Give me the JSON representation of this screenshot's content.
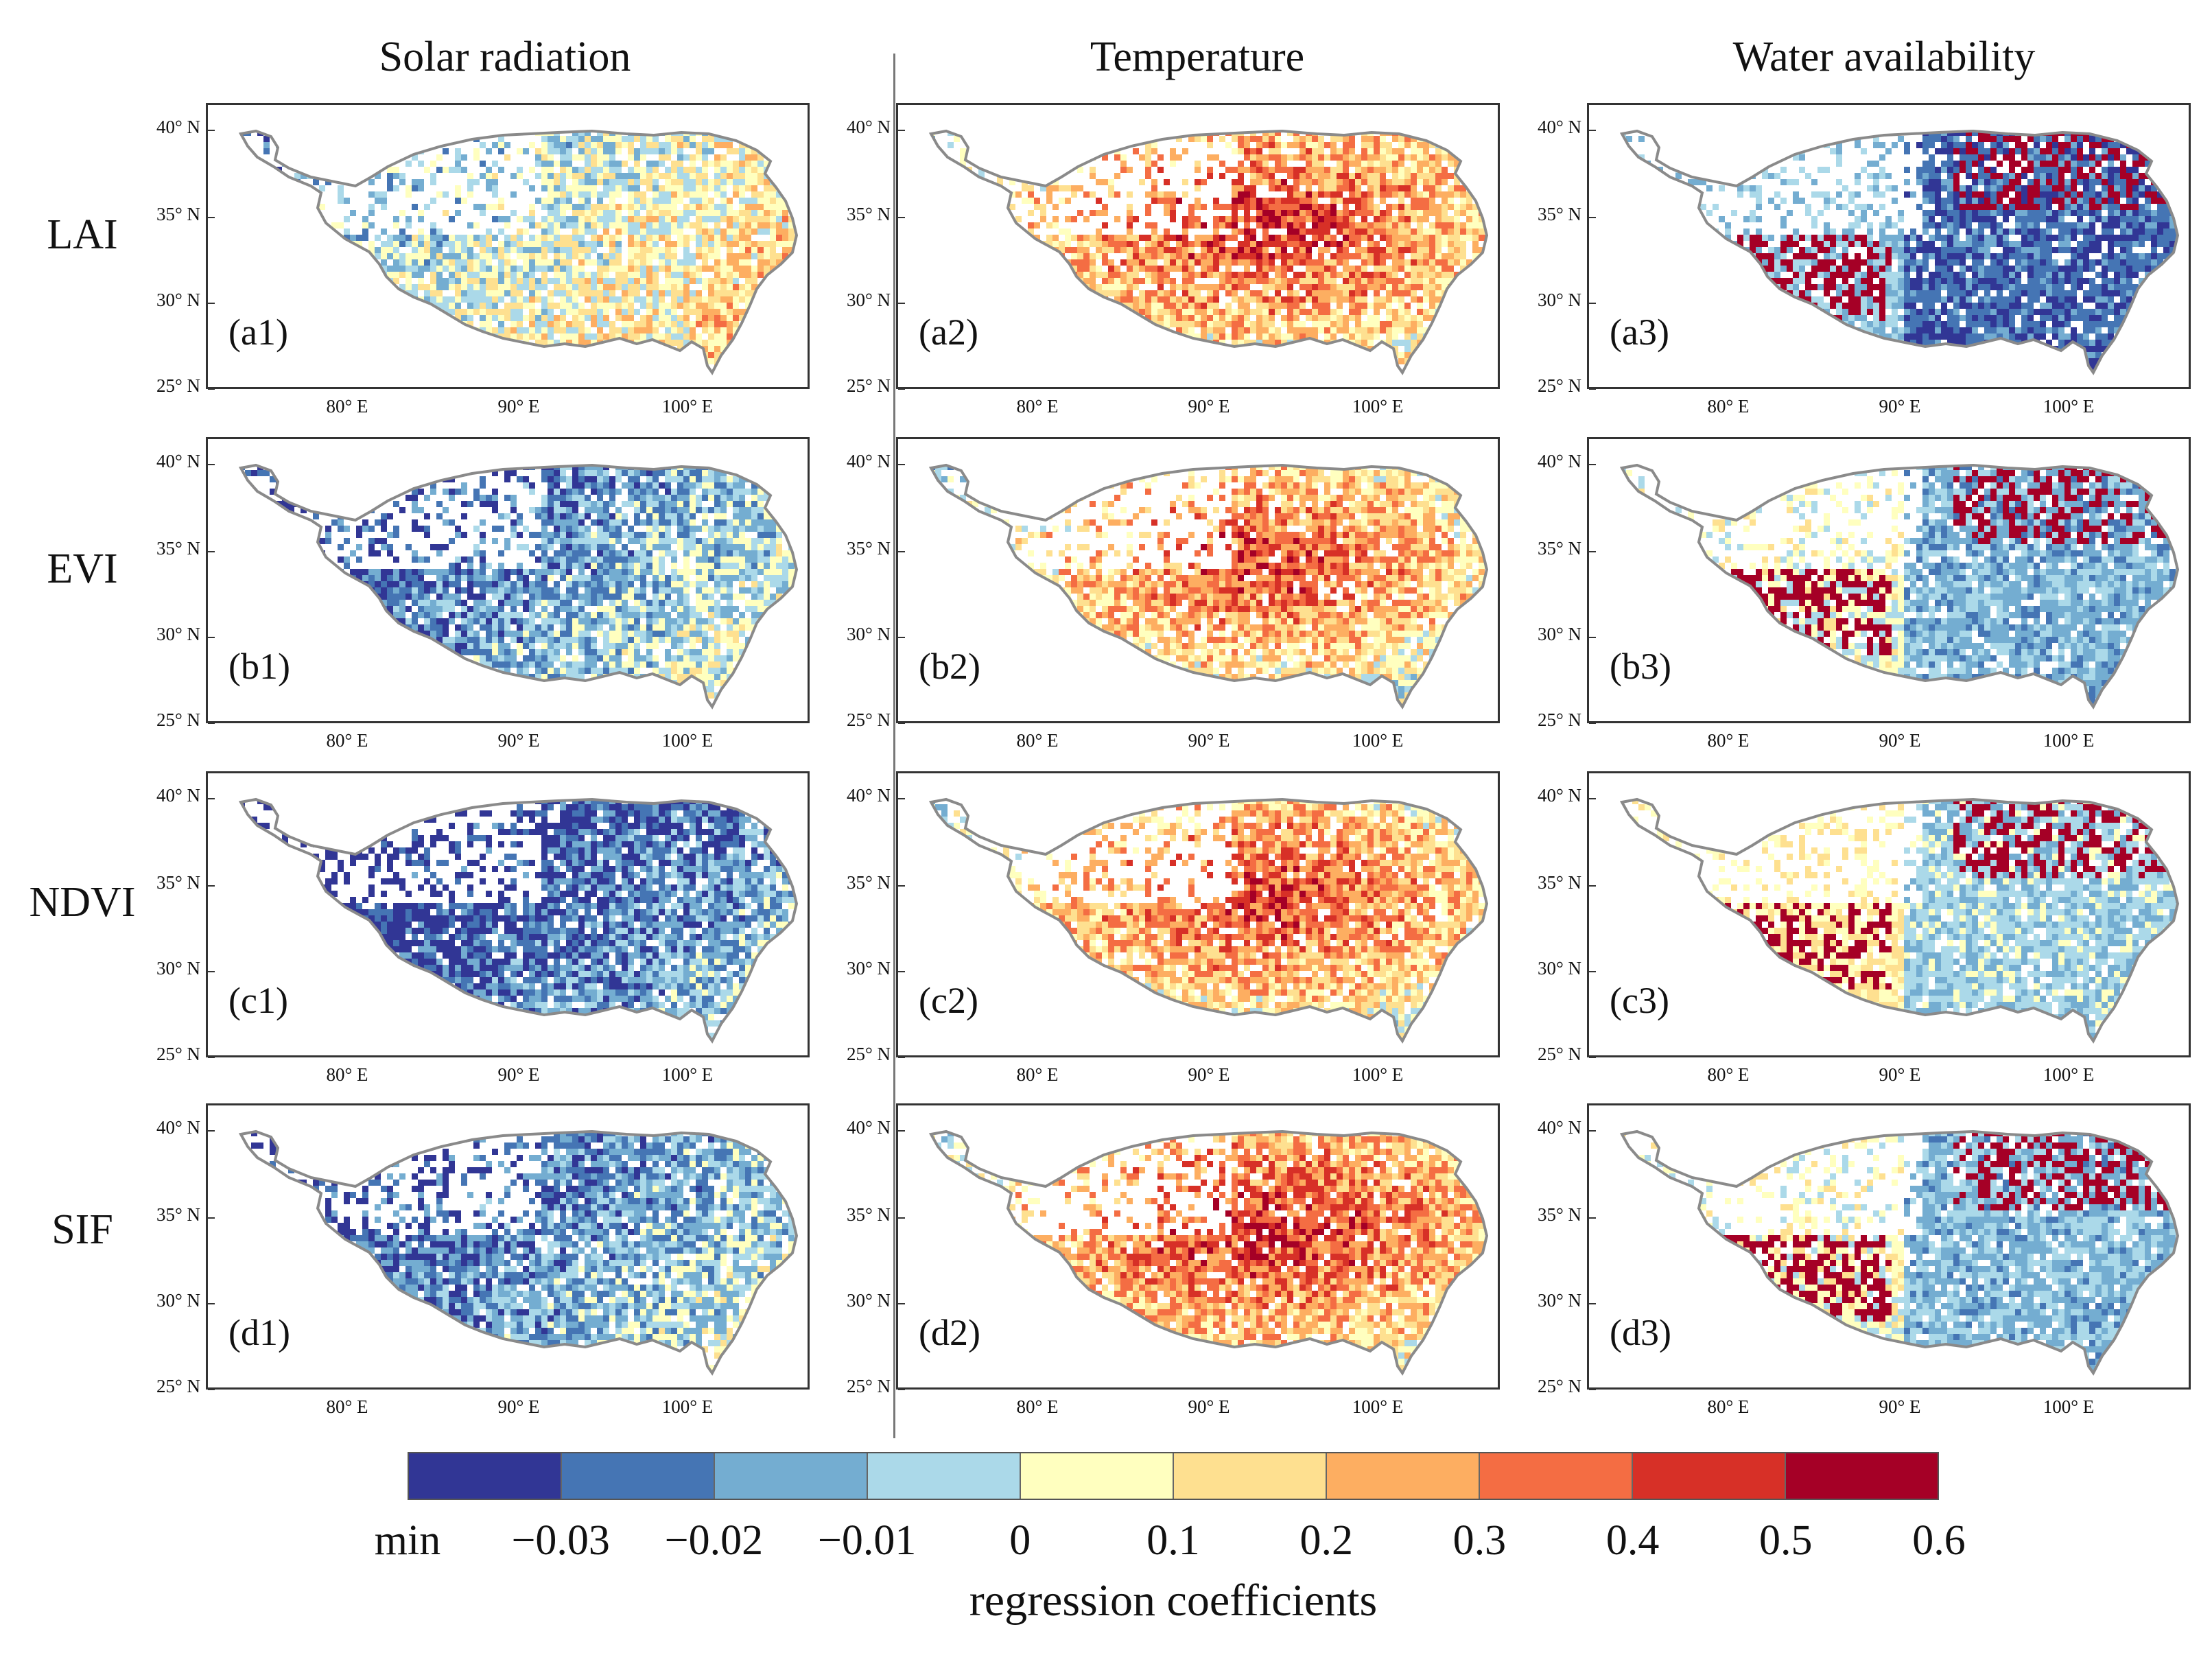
{
  "columns": [
    "Solar radiation",
    "Temperature",
    "Water availability"
  ],
  "rows": [
    "LAI",
    "EVI",
    "NDVI",
    "SIF"
  ],
  "panel_labels": [
    [
      "(a1)",
      "(a2)",
      "(a3)"
    ],
    [
      "(b1)",
      "(b2)",
      "(b3)"
    ],
    [
      "(c1)",
      "(c2)",
      "(c3)"
    ],
    [
      "(d1)",
      "(d2)",
      "(d3)"
    ]
  ],
  "y_ticks": [
    "40° N",
    "35° N",
    "30° N",
    "25° N"
  ],
  "x_ticks": [
    "80° E",
    "90° E",
    "100° E"
  ],
  "colorbar": {
    "title": "regression coefficients",
    "labels": [
      "min",
      "−0.03",
      "−0.02",
      "−0.01",
      "0",
      "0.1",
      "0.2",
      "0.3",
      "0.4",
      "0.5",
      "0.6"
    ],
    "colors": [
      "#313695",
      "#4575b4",
      "#74add1",
      "#abd9e9",
      "#ffffbf",
      "#fee090",
      "#fdae61",
      "#f46d43",
      "#d73027",
      "#a50026"
    ]
  },
  "panel_tone": [
    [
      0.4,
      0.62,
      0.25
    ],
    [
      0.22,
      0.58,
      0.38
    ],
    [
      0.12,
      0.6,
      0.45
    ],
    [
      0.2,
      0.64,
      0.4
    ]
  ]
}
